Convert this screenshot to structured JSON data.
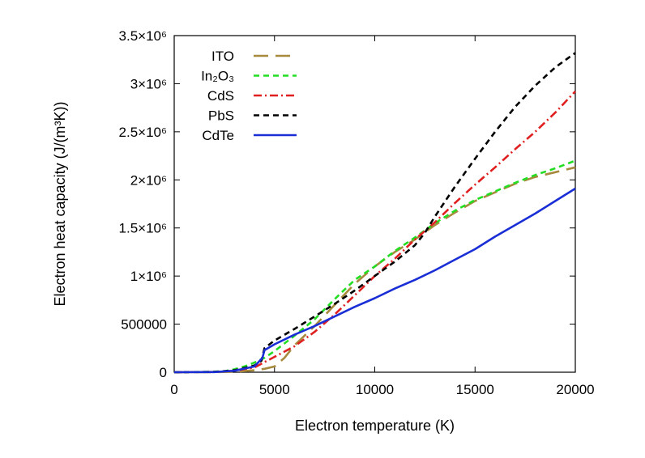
{
  "chart_data": {
    "type": "line",
    "title": "",
    "xlabel": "Electron temperature (K)",
    "ylabel": "Electron heat capacity (J/(m³K))",
    "xlim": [
      0,
      20000
    ],
    "ylim": [
      0,
      3500000
    ],
    "xticks": [
      {
        "value": 0,
        "label": "0"
      },
      {
        "value": 5000,
        "label": "5000"
      },
      {
        "value": 10000,
        "label": "10000"
      },
      {
        "value": 15000,
        "label": "15000"
      },
      {
        "value": 20000,
        "label": "20000"
      }
    ],
    "yticks": [
      {
        "value": 0,
        "label": "0"
      },
      {
        "value": 500000,
        "label": "500000"
      },
      {
        "value": 1000000,
        "label": "1×10⁶"
      },
      {
        "value": 1500000,
        "label": "1.5×10⁶"
      },
      {
        "value": 2000000,
        "label": "2×10⁶"
      },
      {
        "value": 2500000,
        "label": "2.5×10⁶"
      },
      {
        "value": 3000000,
        "label": "3×10⁶"
      },
      {
        "value": 3500000,
        "label": "3.5×10⁶"
      }
    ],
    "grid": false,
    "legend_position": "top-left",
    "series": [
      {
        "name": "ITO",
        "color": "#a88a3e",
        "dash": "long-dash",
        "points": [
          [
            0,
            0
          ],
          [
            2000,
            1000
          ],
          [
            3000,
            5000
          ],
          [
            4000,
            20000
          ],
          [
            4500,
            35000
          ],
          [
            5000,
            60000
          ],
          [
            5500,
            150000
          ],
          [
            6000,
            280000
          ],
          [
            6500,
            380000
          ],
          [
            7000,
            480000
          ],
          [
            8000,
            700000
          ],
          [
            9000,
            920000
          ],
          [
            10000,
            1100000
          ],
          [
            11000,
            1250000
          ],
          [
            12000,
            1380000
          ],
          [
            13000,
            1530000
          ],
          [
            14000,
            1660000
          ],
          [
            15000,
            1780000
          ],
          [
            16000,
            1870000
          ],
          [
            17000,
            1960000
          ],
          [
            18000,
            2030000
          ],
          [
            19000,
            2080000
          ],
          [
            20000,
            2130000
          ]
        ]
      },
      {
        "name": "In₂O₃",
        "color": "#22dd22",
        "dash": "short-dash",
        "points": [
          [
            0,
            0
          ],
          [
            1500,
            3000
          ],
          [
            2500,
            10000
          ],
          [
            3000,
            30000
          ],
          [
            3500,
            60000
          ],
          [
            4000,
            100000
          ],
          [
            4500,
            150000
          ],
          [
            5000,
            220000
          ],
          [
            6000,
            380000
          ],
          [
            7000,
            550000
          ],
          [
            8000,
            760000
          ],
          [
            9000,
            960000
          ],
          [
            10000,
            1100000
          ],
          [
            11000,
            1260000
          ],
          [
            12000,
            1400000
          ],
          [
            13000,
            1550000
          ],
          [
            14000,
            1680000
          ],
          [
            15000,
            1790000
          ],
          [
            16000,
            1880000
          ],
          [
            17000,
            1970000
          ],
          [
            18000,
            2050000
          ],
          [
            19000,
            2120000
          ],
          [
            20000,
            2200000
          ]
        ]
      },
      {
        "name": "CdS",
        "color": "#e02020",
        "dash": "dash-dot",
        "points": [
          [
            0,
            0
          ],
          [
            2000,
            3000
          ],
          [
            3000,
            15000
          ],
          [
            4000,
            50000
          ],
          [
            5000,
            160000
          ],
          [
            6000,
            270000
          ],
          [
            7000,
            420000
          ],
          [
            8000,
            600000
          ],
          [
            9000,
            800000
          ],
          [
            10000,
            1000000
          ],
          [
            11000,
            1180000
          ],
          [
            12000,
            1380000
          ],
          [
            13000,
            1560000
          ],
          [
            14000,
            1760000
          ],
          [
            15000,
            1950000
          ],
          [
            16000,
            2130000
          ],
          [
            17000,
            2320000
          ],
          [
            18000,
            2500000
          ],
          [
            19000,
            2700000
          ],
          [
            20000,
            2920000
          ]
        ]
      },
      {
        "name": "PbS",
        "color": "#000000",
        "dash": "short-dash",
        "points": [
          [
            0,
            0
          ],
          [
            2000,
            3000
          ],
          [
            3000,
            20000
          ],
          [
            4000,
            70000
          ],
          [
            4350,
            120000
          ],
          [
            4500,
            250000
          ],
          [
            5000,
            330000
          ],
          [
            6000,
            450000
          ],
          [
            7000,
            580000
          ],
          [
            8000,
            710000
          ],
          [
            9000,
            850000
          ],
          [
            10000,
            1000000
          ],
          [
            11000,
            1150000
          ],
          [
            12000,
            1320000
          ],
          [
            12500,
            1450000
          ],
          [
            13000,
            1620000
          ],
          [
            14000,
            1930000
          ],
          [
            15000,
            2220000
          ],
          [
            16000,
            2500000
          ],
          [
            17000,
            2760000
          ],
          [
            18000,
            2980000
          ],
          [
            19000,
            3170000
          ],
          [
            20000,
            3320000
          ]
        ]
      },
      {
        "name": "CdTe",
        "color": "#1a2ed6",
        "dash": "solid",
        "points": [
          [
            0,
            0
          ],
          [
            2000,
            2000
          ],
          [
            3000,
            15000
          ],
          [
            4000,
            60000
          ],
          [
            4400,
            150000
          ],
          [
            4500,
            230000
          ],
          [
            5000,
            290000
          ],
          [
            6000,
            390000
          ],
          [
            7000,
            480000
          ],
          [
            8000,
            580000
          ],
          [
            9000,
            680000
          ],
          [
            10000,
            770000
          ],
          [
            11000,
            870000
          ],
          [
            12000,
            960000
          ],
          [
            13000,
            1060000
          ],
          [
            14000,
            1170000
          ],
          [
            15000,
            1280000
          ],
          [
            16000,
            1410000
          ],
          [
            17000,
            1530000
          ],
          [
            18000,
            1650000
          ],
          [
            19000,
            1780000
          ],
          [
            20000,
            1910000
          ]
        ]
      }
    ]
  }
}
